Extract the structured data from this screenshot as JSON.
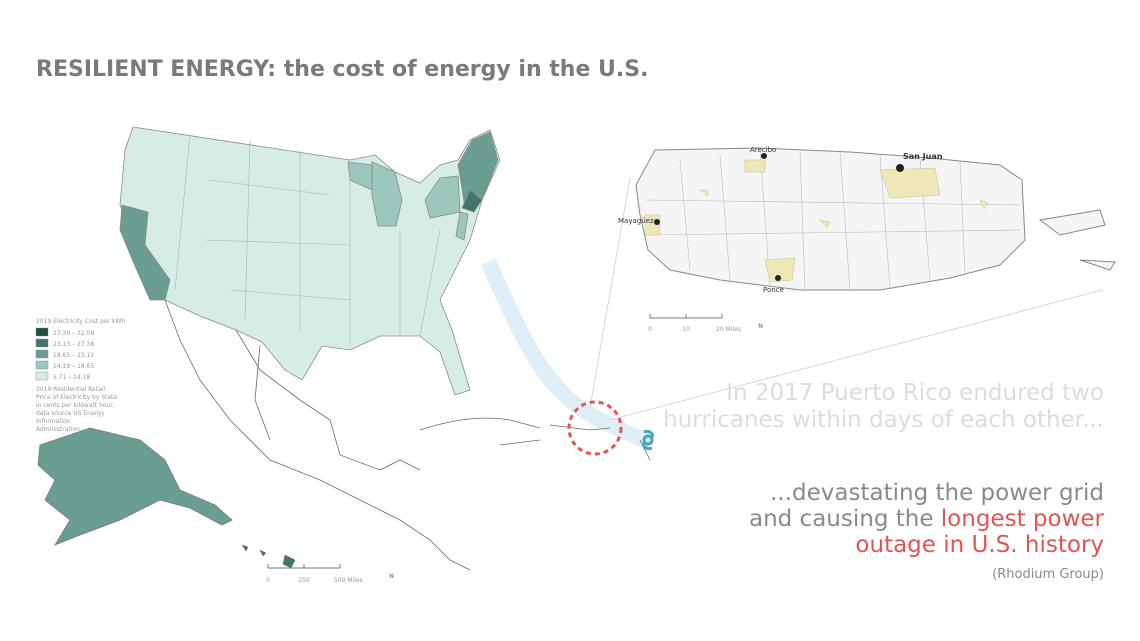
{
  "title": "RESILIENT ENERGY: the cost of energy in the U.S.",
  "legend": {
    "title": "2019 Electricity Cost per kWh",
    "items": [
      {
        "label": "27.39 – 32.08",
        "color": "#1f4f45"
      },
      {
        "label": "23.13 – 27.38",
        "color": "#3f776b"
      },
      {
        "label": "18.65 – 23.12",
        "color": "#6a9e92"
      },
      {
        "label": "14.19 – 18.65",
        "color": "#9cc7bd"
      },
      {
        "label": "5.71 – 14.18",
        "color": "#d6ece7"
      }
    ],
    "note": [
      "2019 Residential Retail",
      "Price of Electricity by State",
      "in cents per kilowatt hour,",
      "data source US Energy",
      "Information",
      "Administration."
    ]
  },
  "us_scale": {
    "labels": [
      "0",
      "250",
      "500 Miles"
    ],
    "north": "N"
  },
  "pr_map": {
    "cities": [
      "Arecibo",
      "San Juan",
      "Mayagüez",
      "Ponce"
    ],
    "scale_labels": [
      "0",
      "10",
      "20 Miles"
    ],
    "north": "N"
  },
  "story": {
    "intro": [
      "In 2017 Puerto Rico endured two",
      "hurricanes within days of each other..."
    ],
    "line1": "...devastating the power grid",
    "line2_plain": "and causing the ",
    "line2_red": "longest power",
    "line3_red": "outage in U.S. history",
    "source": "(Rhodium Group)"
  }
}
